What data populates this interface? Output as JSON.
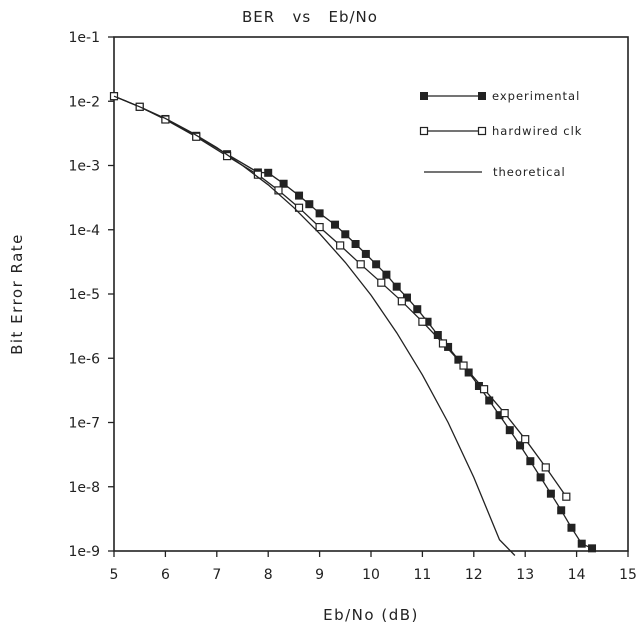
{
  "chart_data": {
    "type": "line",
    "title": "BER   vs   Eb/No",
    "xlabel": "Eb/No (dB)",
    "ylabel": "Bit Error Rate",
    "xlim": [
      5,
      15
    ],
    "ylim": [
      1e-09,
      0.1
    ],
    "yscale": "log",
    "x_ticks": [
      "5",
      "6",
      "7",
      "8",
      "9",
      "10",
      "11",
      "12",
      "13",
      "14",
      "15"
    ],
    "y_ticks": [
      "1e-9",
      "1e-8",
      "1e-7",
      "1e-6",
      "1e-5",
      "1e-4",
      "1e-3",
      "1e-2",
      "1e-1"
    ],
    "grid": false,
    "legend_position": "top-right",
    "series": [
      {
        "name": "experimental",
        "marker": "filled-square",
        "color": "#222222",
        "x": [
          5.0,
          5.5,
          6.0,
          6.6,
          7.2,
          7.8,
          8.0,
          8.3,
          8.6,
          8.8,
          9.0,
          9.3,
          9.5,
          9.7,
          9.9,
          10.1,
          10.3,
          10.5,
          10.7,
          10.9,
          11.1,
          11.3,
          11.5,
          11.7,
          11.9,
          12.1,
          12.3,
          12.5,
          12.7,
          12.9,
          13.1,
          13.3,
          13.5,
          13.7,
          13.9,
          14.1,
          14.3
        ],
        "y": [
          0.012,
          0.0082,
          0.0053,
          0.0029,
          0.0015,
          0.00078,
          0.00077,
          0.00052,
          0.00034,
          0.00025,
          0.00018,
          0.00012,
          8.5e-05,
          6e-05,
          4.2e-05,
          2.9e-05,
          2e-05,
          1.3e-05,
          8.8e-06,
          5.8e-06,
          3.7e-06,
          2.3e-06,
          1.5e-06,
          9.5e-07,
          6e-07,
          3.7e-07,
          2.2e-07,
          1.3e-07,
          7.6e-08,
          4.4e-08,
          2.5e-08,
          1.4e-08,
          7.8e-09,
          4.3e-09,
          2.3e-09,
          1.3e-09,
          1.1e-09
        ]
      },
      {
        "name": "hardwired clk",
        "marker": "open-square",
        "color": "#222222",
        "x": [
          5.0,
          5.5,
          6.0,
          6.6,
          7.2,
          7.8,
          8.2,
          8.6,
          9.0,
          9.4,
          9.8,
          10.2,
          10.6,
          11.0,
          11.4,
          11.8,
          12.2,
          12.6,
          13.0,
          13.4,
          13.8
        ],
        "y": [
          0.012,
          0.0082,
          0.0052,
          0.0028,
          0.0014,
          0.00072,
          0.00041,
          0.00022,
          0.00011,
          5.7e-05,
          2.9e-05,
          1.5e-05,
          7.7e-06,
          3.7e-06,
          1.7e-06,
          7.7e-07,
          3.3e-07,
          1.4e-07,
          5.5e-08,
          2e-08,
          7e-09
        ]
      },
      {
        "name": "theoretical",
        "marker": "none",
        "color": "#222222",
        "x": [
          5.0,
          5.5,
          6.0,
          6.5,
          7.0,
          7.5,
          8.0,
          8.5,
          9.0,
          9.5,
          10.0,
          10.5,
          11.0,
          11.5,
          12.0,
          12.5,
          12.8
        ],
        "y": [
          0.012,
          0.0082,
          0.0054,
          0.0033,
          0.0019,
          0.001,
          0.0005,
          0.00022,
          8.7e-05,
          3.1e-05,
          9.6e-06,
          2.5e-06,
          5.5e-07,
          1e-07,
          1.4e-08,
          1.5e-09,
          8.5e-10
        ]
      }
    ]
  }
}
